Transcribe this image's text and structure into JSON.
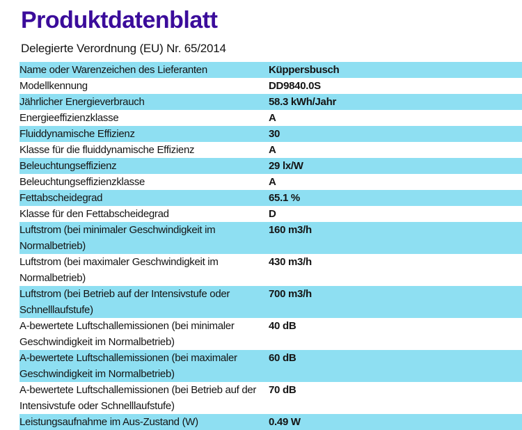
{
  "page": {
    "title": "Produktdatenblatt",
    "subtitle": "Delegierte Verordnung (EU) Nr. 65/2014"
  },
  "colors": {
    "title_purple": "#3b0c9b",
    "row_highlight_blue": "#8edff2",
    "text": "#141414",
    "background": "#ffffff"
  },
  "table": {
    "rows": [
      {
        "label": "Name oder Warenzeichen des Lieferanten",
        "value": "Küppersbusch",
        "highlight": true
      },
      {
        "label": "Modellkennung",
        "value": "DD9840.0S",
        "highlight": false
      },
      {
        "label": "Jährlicher Energieverbrauch",
        "value": "58.3 kWh/Jahr",
        "highlight": true
      },
      {
        "label": "Energieeffizienzklasse",
        "value": "A",
        "highlight": false
      },
      {
        "label": "Fluiddynamische Effizienz",
        "value": "30",
        "highlight": true
      },
      {
        "label": "Klasse für die fluiddynamische Effizienz",
        "value": "A",
        "highlight": false
      },
      {
        "label": "Beleuchtungseffizienz",
        "value": "29 lx/W",
        "highlight": true
      },
      {
        "label": "Beleuchtungseffizienzklasse",
        "value": "A",
        "highlight": false
      },
      {
        "label": "Fettabscheidegrad",
        "value": "65.1 %",
        "highlight": true
      },
      {
        "label": "Klasse für den Fettabscheidegrad",
        "value": "D",
        "highlight": false
      },
      {
        "label": "Luftstrom (bei minimaler Geschwindigkeit im Normalbetrieb)",
        "value": "160 m3/h",
        "highlight": true
      },
      {
        "label": "Luftstrom (bei maximaler Geschwindigkeit im Normalbetrieb)",
        "value": "430 m3/h",
        "highlight": false
      },
      {
        "label": "Luftstrom (bei Betrieb auf der Intensivstufe oder Schnelllaufstufe)",
        "value": "700 m3/h",
        "highlight": true
      },
      {
        "label": "A-bewertete Luftschallemissionen (bei minimaler Geschwindigkeit im Normalbetrieb)",
        "value": "40 dB",
        "highlight": false
      },
      {
        "label": "A-bewertete Luftschallemissionen (bei maximaler Geschwindigkeit im Normalbetrieb)",
        "value": "60 dB",
        "highlight": true
      },
      {
        "label": "A-bewertete Luftschallemissionen (bei Betrieb auf der Intensivstufe oder Schnelllaufstufe)",
        "value": "70 dB",
        "highlight": false
      },
      {
        "label": "Leistungsaufnahme im Aus-Zustand (W)",
        "value": "0.49 W",
        "highlight": true
      }
    ]
  }
}
